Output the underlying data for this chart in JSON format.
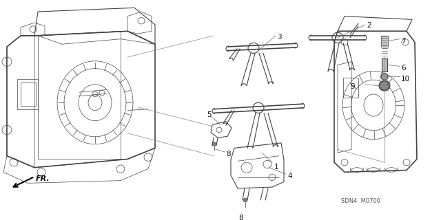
{
  "background_color": "#ffffff",
  "line_color": "#444444",
  "text_color": "#111111",
  "fig_width": 6.4,
  "fig_height": 3.2,
  "dpi": 100,
  "watermark": "SDN4  M0700",
  "fr_label": "FR."
}
